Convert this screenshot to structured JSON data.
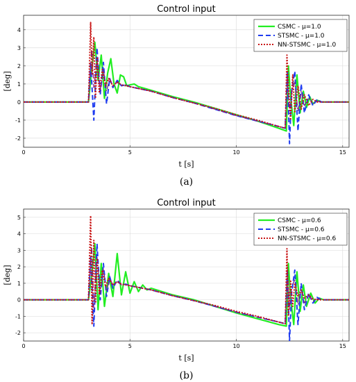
{
  "chart_data": [
    {
      "type": "line",
      "caption": "(a)",
      "title": "Control input",
      "xlabel": "t [s]",
      "ylabel": "[deg]",
      "xlim": [
        0,
        15.3
      ],
      "ylim": [
        -2.5,
        4.8
      ],
      "xticks": [
        0,
        5,
        10,
        15
      ],
      "yticks": [
        -2,
        -1,
        0,
        1,
        2,
        3,
        4
      ],
      "legend_position": "top-right",
      "series": [
        {
          "name": "CSMC -  μ=1.0",
          "color": "#22ee22",
          "dash": "solid",
          "width": 2.2,
          "x": [
            0,
            3.05,
            3.2,
            3.35,
            3.5,
            3.65,
            3.8,
            3.95,
            4.1,
            4.25,
            4.4,
            4.55,
            4.7,
            4.85,
            5.0,
            5.2,
            5.4,
            6,
            7,
            8,
            9,
            10,
            11,
            12,
            12.35,
            12.45,
            12.55,
            12.7,
            12.85,
            13.0,
            13.15,
            13.3,
            13.45,
            13.6,
            13.8,
            14.0,
            14.3,
            15.3
          ],
          "y": [
            0,
            0,
            1.8,
            3.3,
            1.2,
            2.6,
            0.2,
            1.6,
            2.4,
            1.0,
            0.5,
            1.5,
            1.4,
            0.9,
            0.95,
            1.0,
            0.85,
            0.65,
            0.3,
            0.0,
            -0.35,
            -0.7,
            -1.05,
            -1.45,
            -1.6,
            2.0,
            0.3,
            -1.3,
            1.5,
            -0.6,
            0.6,
            -0.3,
            0.3,
            -0.1,
            0.1,
            0,
            0,
            0
          ]
        },
        {
          "name": "STSMC -  μ=1.0",
          "color": "#1f3cf0",
          "dash": "7,4",
          "width": 2.0,
          "x": [
            0,
            3.05,
            3.15,
            3.3,
            3.45,
            3.6,
            3.75,
            3.9,
            4.05,
            4.2,
            4.4,
            4.6,
            4.8,
            5.0,
            6,
            7,
            8,
            9,
            10,
            11,
            12,
            12.3,
            12.4,
            12.5,
            12.6,
            12.75,
            12.9,
            13.05,
            13.2,
            13.4,
            13.6,
            13.8,
            14.0,
            14.3,
            15.3
          ],
          "y": [
            0,
            0,
            2.2,
            -1.0,
            3.0,
            0.4,
            2.2,
            -0.1,
            1.3,
            0.8,
            1.2,
            0.9,
            0.95,
            0.85,
            0.6,
            0.25,
            -0.05,
            -0.4,
            -0.75,
            -1.05,
            -1.35,
            -1.45,
            1.7,
            -2.3,
            0.6,
            1.7,
            -1.6,
            1.0,
            -0.6,
            0.4,
            -0.2,
            0.15,
            0,
            0,
            0
          ]
        },
        {
          "name": "NN-STSMC -  μ=1.0",
          "color": "#c81414",
          "dash": "2,2",
          "width": 2.0,
          "x": [
            0,
            3.05,
            3.15,
            3.22,
            3.3,
            3.38,
            3.46,
            3.56,
            3.7,
            3.85,
            4.0,
            4.2,
            4.4,
            4.6,
            4.8,
            5.0,
            6,
            7,
            8,
            9,
            10,
            11,
            12,
            12.3,
            12.38,
            12.45,
            12.55,
            12.65,
            12.75,
            12.9,
            13.05,
            13.2,
            13.4,
            13.6,
            13.8,
            14.0,
            14.5,
            15.3
          ],
          "y": [
            0,
            0,
            4.4,
            1.5,
            3.6,
            0.2,
            2.5,
            0.5,
            1.8,
            0.9,
            1.3,
            0.9,
            1.1,
            0.95,
            0.9,
            0.85,
            0.6,
            0.25,
            -0.05,
            -0.35,
            -0.7,
            -1.0,
            -1.35,
            -1.45,
            2.6,
            0.8,
            -1.0,
            1.5,
            -0.6,
            0.9,
            -0.4,
            0.4,
            -0.2,
            0.15,
            0,
            0,
            0,
            0
          ]
        },
        {
          "name": "",
          "color": "#7a1e8a",
          "dash": "8,3,2,3",
          "width": 1.3,
          "x": [
            0,
            3.05,
            3.2,
            3.3,
            3.45,
            3.6,
            3.75,
            3.9,
            4.05,
            4.2,
            4.4,
            4.6,
            4.8,
            5.0,
            6,
            7,
            8,
            9,
            10,
            11,
            12,
            12.3,
            12.4,
            12.5,
            12.6,
            12.75,
            12.9,
            13.05,
            13.2,
            13.4,
            13.6,
            13.8,
            14.0,
            14.5,
            15.3
          ],
          "y": [
            0,
            0,
            3.0,
            0.8,
            2.4,
            0.6,
            1.8,
            0.6,
            1.3,
            0.9,
            1.1,
            0.9,
            0.95,
            0.85,
            0.6,
            0.25,
            -0.05,
            -0.4,
            -0.75,
            -1.05,
            -1.35,
            -1.45,
            1.4,
            -0.5,
            0.5,
            1.1,
            -0.5,
            0.6,
            -0.2,
            0.25,
            -0.1,
            0.05,
            0,
            0,
            0
          ]
        }
      ]
    },
    {
      "type": "line",
      "caption": "(b)",
      "title": "Control input",
      "xlabel": "t [s]",
      "ylabel": "[deg]",
      "xlim": [
        0,
        15.3
      ],
      "ylim": [
        -2.5,
        5.5
      ],
      "xticks": [
        0,
        5,
        10,
        15
      ],
      "yticks": [
        -2,
        -1,
        0,
        1,
        2,
        3,
        4,
        5
      ],
      "legend_position": "top-right",
      "series": [
        {
          "name": "CSMC -  μ=0.6",
          "color": "#22ee22",
          "dash": "solid",
          "width": 2.2,
          "x": [
            0,
            3.05,
            3.2,
            3.35,
            3.5,
            3.65,
            3.8,
            4.0,
            4.2,
            4.4,
            4.6,
            4.8,
            5.0,
            5.2,
            5.4,
            5.6,
            5.8,
            6.0,
            7,
            8,
            9,
            10,
            11,
            12,
            12.35,
            12.45,
            12.55,
            12.7,
            12.85,
            13.0,
            13.15,
            13.3,
            13.5,
            13.7,
            13.9,
            14.1,
            14.4,
            15.3
          ],
          "y": [
            0,
            0,
            1.5,
            3.4,
            -0.6,
            2.2,
            -0.4,
            1.6,
            0.2,
            2.8,
            0.3,
            1.7,
            0.4,
            1.1,
            0.5,
            0.9,
            0.6,
            0.7,
            0.3,
            0.0,
            -0.4,
            -0.8,
            -1.15,
            -1.5,
            -1.6,
            2.2,
            0.1,
            -1.5,
            1.7,
            -0.7,
            0.9,
            -0.4,
            0.4,
            -0.2,
            0.1,
            0,
            0,
            0
          ]
        },
        {
          "name": "STSMC -  μ=0.6",
          "color": "#1f3cf0",
          "dash": "7,4",
          "width": 2.0,
          "x": [
            0,
            3.05,
            3.15,
            3.3,
            3.45,
            3.6,
            3.75,
            3.9,
            4.05,
            4.2,
            4.4,
            4.6,
            4.8,
            5.0,
            6,
            7,
            8,
            9,
            10,
            11,
            12,
            12.3,
            12.4,
            12.5,
            12.6,
            12.75,
            12.9,
            13.05,
            13.2,
            13.4,
            13.6,
            13.8,
            14.0,
            14.3,
            15.3
          ],
          "y": [
            0,
            0,
            2.6,
            -1.6,
            3.4,
            0.0,
            2.2,
            0.2,
            1.4,
            0.7,
            1.2,
            0.9,
            0.95,
            0.85,
            0.6,
            0.25,
            -0.05,
            -0.4,
            -0.75,
            -1.05,
            -1.35,
            -1.45,
            1.8,
            -2.5,
            0.4,
            1.8,
            -1.5,
            1.0,
            -0.6,
            0.4,
            -0.2,
            0.15,
            0,
            0,
            0
          ]
        },
        {
          "name": "NN-STSMC -  μ=0.6",
          "color": "#c81414",
          "dash": "2,2",
          "width": 2.0,
          "x": [
            0,
            3.05,
            3.15,
            3.22,
            3.3,
            3.38,
            3.46,
            3.56,
            3.7,
            3.85,
            4.0,
            4.2,
            4.4,
            4.6,
            4.8,
            5.0,
            6,
            7,
            8,
            9,
            10,
            11,
            12,
            12.3,
            12.38,
            12.45,
            12.55,
            12.65,
            12.75,
            12.9,
            13.05,
            13.2,
            13.4,
            13.6,
            13.8,
            14.0,
            14.5,
            15.3
          ],
          "y": [
            0,
            0,
            5.1,
            -1.5,
            3.6,
            -0.2,
            2.5,
            0.3,
            1.8,
            0.8,
            1.3,
            0.9,
            1.1,
            0.95,
            0.9,
            0.85,
            0.6,
            0.25,
            -0.05,
            -0.35,
            -0.7,
            -1.0,
            -1.35,
            -1.45,
            3.1,
            -1.0,
            1.2,
            -0.4,
            1.0,
            0.2,
            0.6,
            0.1,
            0.3,
            0.05,
            0,
            0,
            0,
            0
          ]
        },
        {
          "name": "",
          "color": "#7a1e8a",
          "dash": "8,3,2,3",
          "width": 1.3,
          "x": [
            0,
            3.05,
            3.2,
            3.3,
            3.45,
            3.6,
            3.75,
            3.9,
            4.05,
            4.2,
            4.4,
            4.6,
            4.8,
            5.0,
            6,
            7,
            8,
            9,
            10,
            11,
            12,
            12.3,
            12.4,
            12.5,
            12.6,
            12.75,
            12.9,
            13.05,
            13.2,
            13.4,
            13.6,
            13.8,
            14.0,
            14.5,
            15.3
          ],
          "y": [
            0,
            0,
            3.3,
            -0.5,
            2.6,
            0.4,
            1.9,
            0.5,
            1.3,
            0.9,
            1.1,
            0.9,
            0.95,
            0.85,
            0.6,
            0.25,
            -0.05,
            -0.4,
            -0.75,
            -1.05,
            -1.35,
            -1.45,
            2.0,
            -0.6,
            0.8,
            1.2,
            -0.3,
            0.6,
            -0.2,
            0.25,
            -0.1,
            0.05,
            0,
            0,
            0
          ]
        }
      ]
    }
  ]
}
